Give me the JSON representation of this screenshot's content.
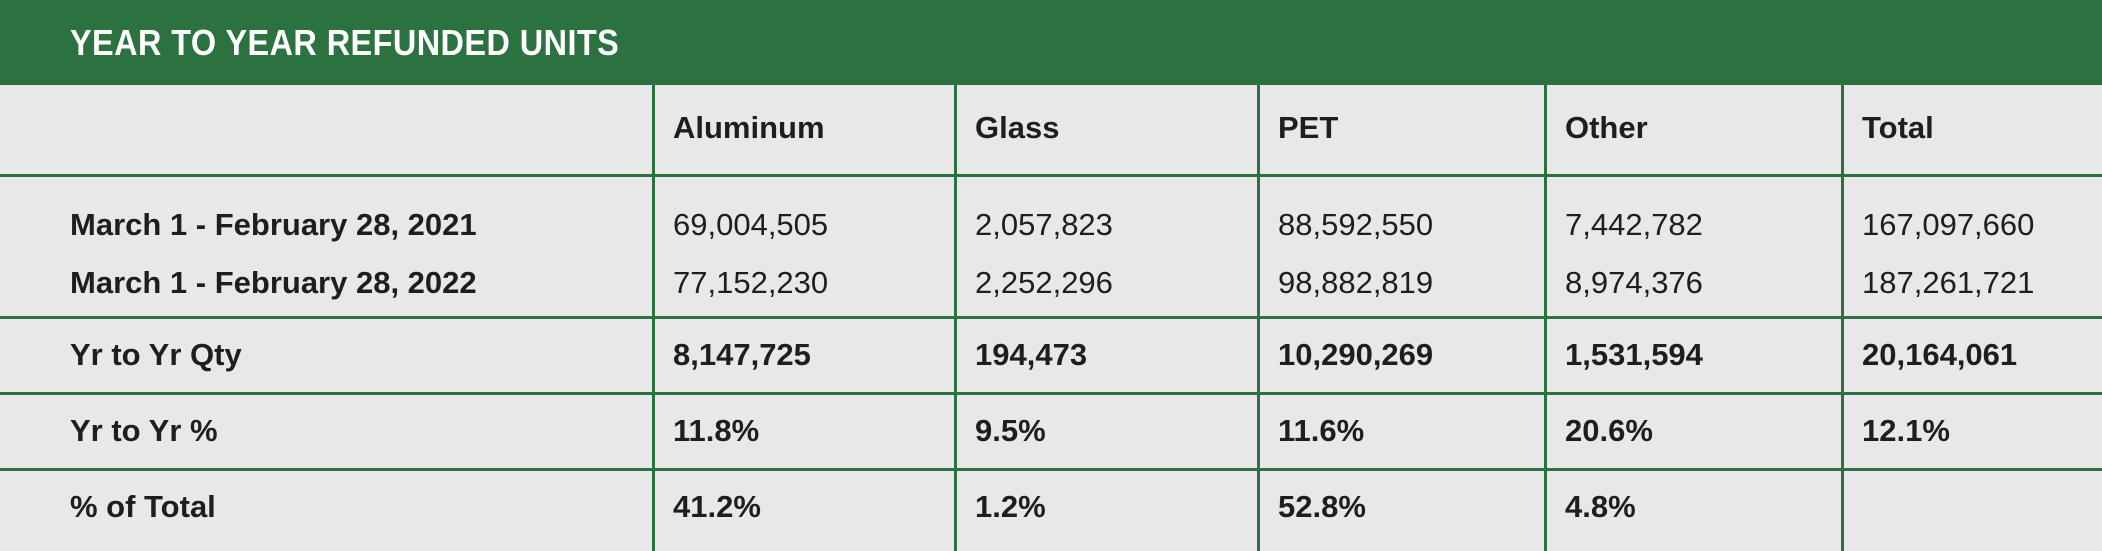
{
  "title": "YEAR TO YEAR REFUNDED UNITS",
  "columns": [
    "",
    "Aluminum",
    "Glass",
    "PET",
    "Other",
    "Total"
  ],
  "rows": {
    "period_2021": [
      "March 1 - February 28,  2021",
      "69,004,505",
      "2,057,823",
      "88,592,550",
      "7,442,782",
      "167,097,660"
    ],
    "period_2022": [
      "March 1 - February 28,  2022",
      "77,152,230",
      "2,252,296",
      "98,882,819",
      "8,974,376",
      "187,261,721"
    ],
    "yr_qty": [
      "Yr to Yr Qty",
      "8,147,725",
      "194,473",
      "10,290,269",
      "1,531,594",
      "20,164,061"
    ],
    "yr_pct": [
      "Yr to Yr %",
      "11.8%",
      "9.5%",
      "11.6%",
      "20.6%",
      "12.1%"
    ],
    "pct_total": [
      "% of Total",
      "41.2%",
      "1.2%",
      "52.8%",
      "4.8%",
      ""
    ]
  },
  "colors": {
    "accent": "#2c7140",
    "cell_bg": "#e8e8e8",
    "text": "#1e1e1e"
  }
}
